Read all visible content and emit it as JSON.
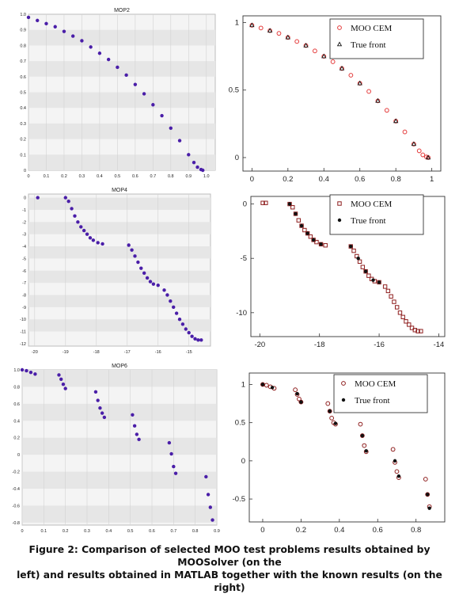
{
  "colors": {
    "solver_points": "#4a1ea8",
    "moo_cem": "#e43a3a",
    "moo_cem_dark": "#8e1e1e",
    "true_front": "#111111",
    "band_light": "#f4f4f4",
    "band_dark": "#e6e6e6"
  },
  "caption": {
    "line1": "Figure 2: Comparison of selected MOO test problems results obtained by MOOSolver (on the",
    "line2": "left) and results obtained in MATLAB together with the known results (on the right)"
  },
  "chart_data": [
    {
      "type": "scatter",
      "title": "MOP2",
      "xlim": [
        0,
        1.05
      ],
      "ylim": [
        0,
        1.0
      ],
      "xticks": [
        "0",
        "0.1",
        "0.2",
        "0.3",
        "0.4",
        "0.5",
        "0.6",
        "0.7",
        "0.8",
        "0.9",
        "1.0"
      ],
      "yticks": [
        "0",
        "0.1",
        "0.2",
        "0.3",
        "0.4",
        "0.5",
        "0.6",
        "0.7",
        "0.8",
        "0.9",
        "1.0"
      ],
      "grid": true,
      "series": [
        {
          "color_key": "solver_points",
          "marker": "dot",
          "x": [
            0,
            0.05,
            0.1,
            0.15,
            0.2,
            0.25,
            0.3,
            0.35,
            0.4,
            0.45,
            0.5,
            0.55,
            0.6,
            0.65,
            0.7,
            0.75,
            0.8,
            0.85,
            0.9,
            0.93,
            0.95,
            0.97,
            0.98
          ],
          "y": [
            0.98,
            0.96,
            0.94,
            0.92,
            0.89,
            0.86,
            0.83,
            0.79,
            0.75,
            0.71,
            0.66,
            0.61,
            0.55,
            0.49,
            0.42,
            0.35,
            0.27,
            0.19,
            0.1,
            0.05,
            0.02,
            0.005,
            0
          ]
        }
      ]
    },
    {
      "type": "scatter",
      "xlim": [
        -0.05,
        1.05
      ],
      "ylim": [
        -0.1,
        1.05
      ],
      "xticks": [
        "0",
        "0.2",
        "0.4",
        "0.6",
        "0.8",
        "1"
      ],
      "yticks": [
        "0",
        "0.5",
        "1"
      ],
      "legend": {
        "position": "top-right",
        "entries": [
          "MOO CEM",
          "True front"
        ]
      },
      "series": [
        {
          "name": "MOO CEM",
          "color_key": "moo_cem",
          "marker": "circle",
          "x": [
            0,
            0.05,
            0.1,
            0.15,
            0.2,
            0.25,
            0.3,
            0.35,
            0.4,
            0.45,
            0.5,
            0.55,
            0.6,
            0.65,
            0.7,
            0.75,
            0.8,
            0.85,
            0.9,
            0.93,
            0.95,
            0.97,
            0.98
          ],
          "y": [
            0.98,
            0.96,
            0.94,
            0.92,
            0.89,
            0.86,
            0.83,
            0.79,
            0.75,
            0.71,
            0.66,
            0.61,
            0.55,
            0.49,
            0.42,
            0.35,
            0.27,
            0.19,
            0.1,
            0.05,
            0.02,
            0.005,
            0
          ]
        },
        {
          "name": "True front",
          "color_key": "true_front",
          "marker": "triangle",
          "x": [
            0,
            0.1,
            0.2,
            0.3,
            0.4,
            0.5,
            0.6,
            0.7,
            0.8,
            0.9,
            0.98
          ],
          "y": [
            0.98,
            0.94,
            0.89,
            0.83,
            0.75,
            0.66,
            0.55,
            0.42,
            0.27,
            0.1,
            0
          ]
        }
      ]
    },
    {
      "type": "scatter",
      "title": "MOP4",
      "xlim": [
        -20.2,
        -14.3
      ],
      "ylim": [
        -12.2,
        0.3
      ],
      "xticks": [
        "-20",
        "-19",
        "-18",
        "-17",
        "-16",
        "-15"
      ],
      "yticks": [
        "0",
        "-1",
        "-2",
        "-3",
        "-4",
        "-5",
        "-6",
        "-7",
        "-8",
        "-9",
        "-10",
        "-11",
        "-12"
      ],
      "grid": true,
      "series": [
        {
          "color_key": "solver_points",
          "marker": "dot",
          "x": [
            -19.9,
            -19,
            -18.9,
            -18.8,
            -18.7,
            -18.6,
            -18.5,
            -18.4,
            -18.3,
            -18.2,
            -18.1,
            -17.95,
            -17.8,
            -16.95,
            -16.85,
            -16.75,
            -16.65,
            -16.55,
            -16.45,
            -16.35,
            -16.25,
            -16.15,
            -16.0,
            -15.8,
            -15.7,
            -15.6,
            -15.5,
            -15.4,
            -15.3,
            -15.2,
            -15.1,
            -15.0,
            -14.9,
            -14.8,
            -14.7,
            -14.6
          ],
          "y": [
            0,
            0,
            -0.3,
            -0.9,
            -1.5,
            -2.0,
            -2.4,
            -2.7,
            -3.0,
            -3.3,
            -3.5,
            -3.7,
            -3.8,
            -3.9,
            -4.3,
            -4.8,
            -5.3,
            -5.8,
            -6.2,
            -6.6,
            -6.9,
            -7.1,
            -7.2,
            -7.6,
            -8.0,
            -8.5,
            -9.0,
            -9.5,
            -10.0,
            -10.4,
            -10.8,
            -11.1,
            -11.4,
            -11.6,
            -11.7,
            -11.7
          ]
        }
      ]
    },
    {
      "type": "scatter",
      "xlim": [
        -20.3,
        -13.8
      ],
      "ylim": [
        -12.2,
        0.7
      ],
      "xticks": [
        "-20",
        "-18",
        "-16",
        "-14"
      ],
      "yticks": [
        "0",
        "-5",
        "-10"
      ],
      "legend": {
        "position": "top-right",
        "entries": [
          "MOO CEM",
          "True front"
        ]
      },
      "series": [
        {
          "name": "MOO CEM",
          "color_key": "moo_cem_dark",
          "marker": "square",
          "x": [
            -19.9,
            -19.8,
            -19.0,
            -18.9,
            -18.8,
            -18.7,
            -18.6,
            -18.5,
            -18.4,
            -18.3,
            -18.2,
            -18.1,
            -17.95,
            -17.8,
            -16.95,
            -16.85,
            -16.75,
            -16.65,
            -16.55,
            -16.45,
            -16.35,
            -16.25,
            -16.15,
            -16.0,
            -15.8,
            -15.7,
            -15.6,
            -15.5,
            -15.4,
            -15.3,
            -15.2,
            -15.1,
            -15.0,
            -14.9,
            -14.8,
            -14.7,
            -14.6
          ],
          "y": [
            0.1,
            0.1,
            0,
            -0.3,
            -0.9,
            -1.5,
            -2.0,
            -2.4,
            -2.7,
            -3.0,
            -3.3,
            -3.5,
            -3.7,
            -3.8,
            -3.9,
            -4.3,
            -4.8,
            -5.3,
            -5.8,
            -6.2,
            -6.6,
            -6.9,
            -7.1,
            -7.2,
            -7.6,
            -8.0,
            -8.5,
            -9.0,
            -9.5,
            -10.0,
            -10.4,
            -10.8,
            -11.1,
            -11.4,
            -11.6,
            -11.7,
            -11.7
          ]
        },
        {
          "name": "True front",
          "color_key": "true_front",
          "marker": "dot",
          "x": [
            -19.0,
            -18.8,
            -18.6,
            -18.4,
            -18.2,
            -17.95,
            -16.95,
            -16.7,
            -16.45,
            -16.2,
            -16.0
          ],
          "y": [
            0,
            -0.9,
            -2.0,
            -2.7,
            -3.3,
            -3.7,
            -3.9,
            -5.0,
            -6.2,
            -7.0,
            -7.2
          ]
        }
      ]
    },
    {
      "type": "scatter",
      "title": "MOP6",
      "xlim": [
        0,
        0.9
      ],
      "ylim": [
        -0.83,
        1.0
      ],
      "xticks": [
        "0",
        "0.1",
        "0.2",
        "0.3",
        "0.4",
        "0.5",
        "0.6",
        "0.7",
        "0.8",
        "0.9"
      ],
      "yticks": [
        "1.0",
        "0.8",
        "0.6",
        "0.4",
        "0.2",
        "0",
        "-0.2",
        "-0.4",
        "-0.6",
        "-0.8"
      ],
      "grid": true,
      "series": [
        {
          "color_key": "solver_points",
          "marker": "dot",
          "x": [
            0,
            0.02,
            0.04,
            0.06,
            0.17,
            0.18,
            0.19,
            0.2,
            0.34,
            0.35,
            0.36,
            0.37,
            0.38,
            0.51,
            0.52,
            0.53,
            0.54,
            0.68,
            0.69,
            0.7,
            0.71,
            0.85,
            0.86,
            0.87,
            0.88
          ],
          "y": [
            1.0,
            0.99,
            0.97,
            0.95,
            0.94,
            0.89,
            0.83,
            0.78,
            0.74,
            0.64,
            0.55,
            0.49,
            0.44,
            0.47,
            0.34,
            0.24,
            0.18,
            0.14,
            0.01,
            -0.14,
            -0.22,
            -0.26,
            -0.47,
            -0.62,
            -0.77
          ]
        }
      ]
    },
    {
      "type": "scatter",
      "xlim": [
        -0.07,
        0.95
      ],
      "ylim": [
        -0.8,
        1.15
      ],
      "xticks": [
        "0",
        "0.2",
        "0.4",
        "0.6",
        "0.8"
      ],
      "yticks": [
        "1",
        "0.5",
        "0",
        "-0.5"
      ],
      "legend": {
        "position": "top-right",
        "entries": [
          "MOO CEM",
          "True front"
        ]
      },
      "series": [
        {
          "name": "MOO CEM",
          "color_key": "moo_cem_dark",
          "marker": "circle",
          "x": [
            0,
            0.02,
            0.04,
            0.06,
            0.17,
            0.18,
            0.19,
            0.2,
            0.34,
            0.35,
            0.36,
            0.37,
            0.38,
            0.51,
            0.52,
            0.53,
            0.54,
            0.68,
            0.69,
            0.7,
            0.71,
            0.85,
            0.86,
            0.87
          ],
          "y": [
            1.0,
            0.99,
            0.97,
            0.95,
            0.93,
            0.87,
            0.81,
            0.77,
            0.75,
            0.65,
            0.56,
            0.5,
            0.48,
            0.48,
            0.33,
            0.2,
            0.12,
            0.15,
            -0.02,
            -0.14,
            -0.22,
            -0.24,
            -0.44,
            -0.6
          ]
        },
        {
          "name": "True front",
          "color_key": "true_front",
          "marker": "dot",
          "x": [
            0.0,
            0.05,
            0.18,
            0.2,
            0.35,
            0.38,
            0.52,
            0.54,
            0.69,
            0.71,
            0.86,
            0.87
          ],
          "y": [
            1.0,
            0.96,
            0.88,
            0.77,
            0.65,
            0.49,
            0.33,
            0.13,
            0.0,
            -0.2,
            -0.44,
            -0.62
          ]
        }
      ]
    }
  ]
}
